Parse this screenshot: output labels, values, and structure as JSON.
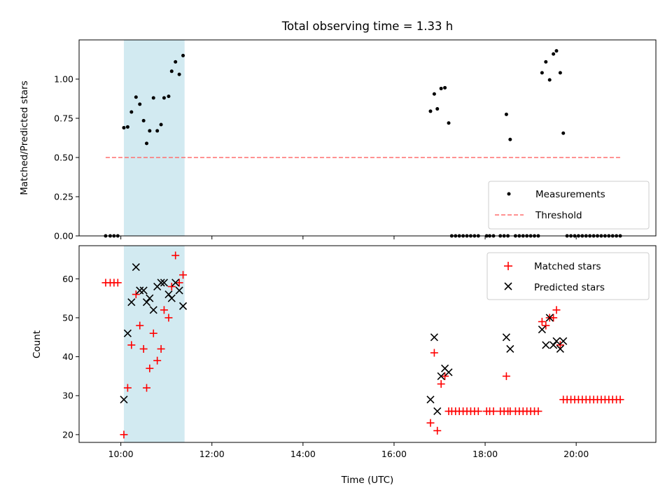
{
  "chart_data": [
    {
      "type": "scatter",
      "title": "Total observing time = 1.33 h",
      "xlabel": "",
      "ylabel": "Matched/Predicted stars",
      "xlim": [
        "09:05",
        "21:45"
      ],
      "ylim": [
        0,
        1.25
      ],
      "y_ticks": [
        0.0,
        0.25,
        0.5,
        0.75,
        1.0
      ],
      "y_tick_labels": [
        "0.00",
        "0.25",
        "0.50",
        "0.75",
        "1.00"
      ],
      "shaded_interval": {
        "start": "10:04",
        "end": "11:24",
        "color": "#add8e6"
      },
      "series": [
        {
          "name": "Measurements",
          "marker": "dot",
          "color": "#000000",
          "points": [
            [
              "09:40",
              0
            ],
            [
              "09:46",
              0
            ],
            [
              "09:51",
              0
            ],
            [
              "09:56",
              0
            ],
            [
              "10:04",
              0.69
            ],
            [
              "10:09",
              0.695
            ],
            [
              "10:14",
              0.79
            ],
            [
              "10:20",
              0.885
            ],
            [
              "10:25",
              0.84
            ],
            [
              "10:30",
              0.735
            ],
            [
              "10:34",
              0.59
            ],
            [
              "10:38",
              0.67
            ],
            [
              "10:43",
              0.88
            ],
            [
              "10:48",
              0.67
            ],
            [
              "10:53",
              0.71
            ],
            [
              "10:57",
              0.88
            ],
            [
              "11:03",
              0.89
            ],
            [
              "11:07",
              1.05
            ],
            [
              "11:12",
              1.11
            ],
            [
              "11:17",
              1.03
            ],
            [
              "11:22",
              1.15
            ],
            [
              "16:48",
              0.795
            ],
            [
              "16:53",
              0.905
            ],
            [
              "16:57",
              0.81
            ],
            [
              "17:02",
              0.94
            ],
            [
              "17:07",
              0.945
            ],
            [
              "17:12",
              0.72
            ],
            [
              "17:16",
              0
            ],
            [
              "17:21",
              0
            ],
            [
              "17:26",
              0
            ],
            [
              "17:31",
              0
            ],
            [
              "17:36",
              0
            ],
            [
              "17:41",
              0
            ],
            [
              "17:46",
              0
            ],
            [
              "17:51",
              0
            ],
            [
              "18:02",
              0
            ],
            [
              "18:06",
              0
            ],
            [
              "18:11",
              0
            ],
            [
              "18:20",
              0
            ],
            [
              "18:25",
              0
            ],
            [
              "18:30",
              0
            ],
            [
              "18:28",
              0.775
            ],
            [
              "18:33",
              0.615
            ],
            [
              "18:40",
              0
            ],
            [
              "18:45",
              0
            ],
            [
              "18:50",
              0
            ],
            [
              "18:55",
              0
            ],
            [
              "19:00",
              0
            ],
            [
              "19:05",
              0
            ],
            [
              "19:10",
              0
            ],
            [
              "19:15",
              1.04
            ],
            [
              "19:20",
              1.11
            ],
            [
              "19:25",
              0.995
            ],
            [
              "19:30",
              1.16
            ],
            [
              "19:34",
              1.18
            ],
            [
              "19:39",
              1.04
            ],
            [
              "19:43",
              0.655
            ],
            [
              "19:48",
              0
            ],
            [
              "19:53",
              0
            ],
            [
              "19:58",
              0
            ],
            [
              "20:03",
              0
            ],
            [
              "20:08",
              0
            ],
            [
              "20:13",
              0
            ],
            [
              "20:18",
              0
            ],
            [
              "20:23",
              0
            ],
            [
              "20:28",
              0
            ],
            [
              "20:33",
              0
            ],
            [
              "20:38",
              0
            ],
            [
              "20:43",
              0
            ],
            [
              "20:48",
              0
            ],
            [
              "20:53",
              0
            ],
            [
              "20:58",
              0
            ]
          ]
        },
        {
          "name": "Threshold",
          "type": "line",
          "style": "dashed",
          "color": "#ff6f6f",
          "points": [
            [
              "09:40",
              0.5
            ],
            [
              "20:58",
              0.5
            ]
          ]
        }
      ],
      "legend": {
        "location": "lower right",
        "entries": [
          "Measurements",
          "Threshold"
        ]
      }
    },
    {
      "type": "scatter",
      "title": "",
      "xlabel": "Time (UTC)",
      "ylabel": "Count",
      "xlim": [
        "09:05",
        "21:45"
      ],
      "ylim": [
        18,
        68.5
      ],
      "x_tick_labels": [
        "10:00",
        "12:00",
        "14:00",
        "16:00",
        "18:00",
        "20:00"
      ],
      "y_ticks": [
        20,
        30,
        40,
        50,
        60
      ],
      "shaded_interval": {
        "start": "10:04",
        "end": "11:24",
        "color": "#add8e6"
      },
      "series": [
        {
          "name": "Matched stars",
          "marker": "plus",
          "color": "#ff0000",
          "points": [
            [
              "09:40",
              59
            ],
            [
              "09:46",
              59
            ],
            [
              "09:51",
              59
            ],
            [
              "09:56",
              59
            ],
            [
              "10:04",
              20
            ],
            [
              "10:09",
              32
            ],
            [
              "10:14",
              43
            ],
            [
              "10:20",
              56
            ],
            [
              "10:25",
              48
            ],
            [
              "10:30",
              42
            ],
            [
              "10:34",
              32
            ],
            [
              "10:38",
              37
            ],
            [
              "10:43",
              46
            ],
            [
              "10:48",
              39
            ],
            [
              "10:53",
              42
            ],
            [
              "10:57",
              52
            ],
            [
              "11:03",
              50
            ],
            [
              "11:07",
              58
            ],
            [
              "11:12",
              66
            ],
            [
              "11:17",
              59
            ],
            [
              "11:22",
              61
            ],
            [
              "16:48",
              23
            ],
            [
              "16:53",
              41
            ],
            [
              "16:57",
              21
            ],
            [
              "17:02",
              33
            ],
            [
              "17:07",
              35
            ],
            [
              "17:12",
              26
            ],
            [
              "17:16",
              26
            ],
            [
              "17:21",
              26
            ],
            [
              "17:26",
              26
            ],
            [
              "17:31",
              26
            ],
            [
              "17:36",
              26
            ],
            [
              "17:41",
              26
            ],
            [
              "17:46",
              26
            ],
            [
              "17:51",
              26
            ],
            [
              "18:02",
              26
            ],
            [
              "18:06",
              26
            ],
            [
              "18:11",
              26
            ],
            [
              "18:20",
              26
            ],
            [
              "18:25",
              26
            ],
            [
              "18:30",
              26
            ],
            [
              "18:28",
              35
            ],
            [
              "18:33",
              26
            ],
            [
              "18:40",
              26
            ],
            [
              "18:45",
              26
            ],
            [
              "18:50",
              26
            ],
            [
              "18:55",
              26
            ],
            [
              "19:00",
              26
            ],
            [
              "19:05",
              26
            ],
            [
              "19:10",
              26
            ],
            [
              "19:15",
              49
            ],
            [
              "19:20",
              48
            ],
            [
              "19:25",
              50
            ],
            [
              "19:30",
              50
            ],
            [
              "19:34",
              52
            ],
            [
              "19:39",
              43
            ],
            [
              "19:43",
              29
            ],
            [
              "19:48",
              29
            ],
            [
              "19:53",
              29
            ],
            [
              "19:58",
              29
            ],
            [
              "20:03",
              29
            ],
            [
              "20:08",
              29
            ],
            [
              "20:13",
              29
            ],
            [
              "20:18",
              29
            ],
            [
              "20:23",
              29
            ],
            [
              "20:28",
              29
            ],
            [
              "20:33",
              29
            ],
            [
              "20:38",
              29
            ],
            [
              "20:43",
              29
            ],
            [
              "20:48",
              29
            ],
            [
              "20:53",
              29
            ],
            [
              "20:58",
              29
            ]
          ]
        },
        {
          "name": "Predicted stars",
          "marker": "x",
          "color": "#000000",
          "points": [
            [
              "10:04",
              29
            ],
            [
              "10:09",
              46
            ],
            [
              "10:14",
              54
            ],
            [
              "10:20",
              63
            ],
            [
              "10:25",
              57
            ],
            [
              "10:30",
              57
            ],
            [
              "10:34",
              54
            ],
            [
              "10:38",
              55
            ],
            [
              "10:43",
              52
            ],
            [
              "10:48",
              58
            ],
            [
              "10:53",
              59
            ],
            [
              "10:57",
              59
            ],
            [
              "11:03",
              56
            ],
            [
              "11:07",
              55
            ],
            [
              "11:12",
              59
            ],
            [
              "11:17",
              57
            ],
            [
              "11:22",
              53
            ],
            [
              "16:48",
              29
            ],
            [
              "16:53",
              45
            ],
            [
              "16:57",
              26
            ],
            [
              "17:02",
              35
            ],
            [
              "17:07",
              37
            ],
            [
              "17:12",
              36
            ],
            [
              "18:28",
              45
            ],
            [
              "18:33",
              42
            ],
            [
              "19:15",
              47
            ],
            [
              "19:20",
              43
            ],
            [
              "19:25",
              50
            ],
            [
              "19:30",
              43
            ],
            [
              "19:34",
              44
            ],
            [
              "19:39",
              42
            ],
            [
              "19:43",
              44
            ]
          ]
        }
      ],
      "legend": {
        "location": "upper right",
        "entries": [
          "Matched stars",
          "Predicted stars"
        ]
      }
    }
  ]
}
